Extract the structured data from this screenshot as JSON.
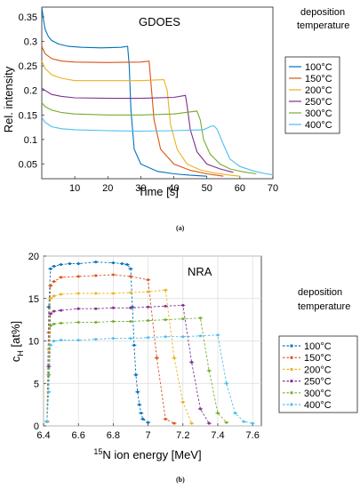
{
  "panels": [
    {
      "caption": "(a)",
      "chart_data": {
        "type": "line",
        "title": "GDOES",
        "xlabel": "Time [s]",
        "ylabel": "Rel. intensity",
        "xlim": [
          0,
          70
        ],
        "ylim": [
          0.02,
          0.37
        ],
        "xticks": [
          "10",
          "20",
          "30",
          "40",
          "50",
          "60",
          "70"
        ],
        "yticks": [
          "0.05",
          "0.1",
          "0.15",
          "0.2",
          "0.25",
          "0.3",
          "0.35"
        ],
        "ytick_values": [
          0.05,
          0.1,
          0.15,
          0.2,
          0.25,
          0.3,
          0.35
        ],
        "xtick_values": [
          10,
          20,
          30,
          40,
          50,
          60,
          70
        ],
        "grid": false,
        "legend_title": [
          "deposition",
          "temperature"
        ],
        "legend_position": "right",
        "series": [
          {
            "name": "100°C",
            "color": "#0072BD",
            "x": [
              0,
              0.5,
              1,
              2,
              3,
              5,
              8,
              12,
              18,
              24,
              26,
              26.5,
              27,
              28,
              30,
              35,
              40,
              45,
              50
            ],
            "y": [
              0.37,
              0.345,
              0.325,
              0.31,
              0.302,
              0.295,
              0.29,
              0.288,
              0.287,
              0.288,
              0.29,
              0.25,
              0.16,
              0.08,
              0.05,
              0.035,
              0.03,
              0.027,
              0.025
            ]
          },
          {
            "name": "150°C",
            "color": "#D95319",
            "x": [
              0,
              1,
              3,
              6,
              10,
              20,
              30,
              32.5,
              33,
              34,
              36,
              40,
              45,
              50,
              55
            ],
            "y": [
              0.29,
              0.275,
              0.265,
              0.26,
              0.258,
              0.257,
              0.258,
              0.26,
              0.22,
              0.14,
              0.08,
              0.05,
              0.037,
              0.03,
              0.025
            ]
          },
          {
            "name": "200°C",
            "color": "#EDB120",
            "x": [
              0,
              1,
              3,
              6,
              10,
              20,
              30,
              37,
              38,
              39,
              41,
              44,
              48,
              52,
              56,
              60
            ],
            "y": [
              0.26,
              0.245,
              0.232,
              0.225,
              0.22,
              0.22,
              0.22,
              0.222,
              0.2,
              0.13,
              0.08,
              0.05,
              0.038,
              0.032,
              0.028,
              0.025
            ]
          },
          {
            "name": "250°C",
            "color": "#7E2F8E",
            "x": [
              0,
              1,
              3,
              6,
              10,
              20,
              30,
              40,
              43.5,
              44,
              45,
              47,
              50,
              54,
              58
            ],
            "y": [
              0.205,
              0.2,
              0.192,
              0.188,
              0.185,
              0.184,
              0.184,
              0.186,
              0.19,
              0.17,
              0.12,
              0.075,
              0.05,
              0.04,
              0.033
            ]
          },
          {
            "name": "300°C",
            "color": "#77AC30",
            "x": [
              0,
              1,
              3,
              6,
              10,
              20,
              30,
              40,
              47,
              48,
              49,
              51,
              54,
              57,
              61,
              65
            ],
            "y": [
              0.175,
              0.167,
              0.16,
              0.155,
              0.152,
              0.15,
              0.15,
              0.152,
              0.158,
              0.14,
              0.1,
              0.07,
              0.05,
              0.04,
              0.034,
              0.03
            ]
          },
          {
            "name": "400°C",
            "color": "#4DBEEE",
            "x": [
              0,
              1,
              3,
              6,
              10,
              20,
              30,
              40,
              49,
              51,
              52,
              53,
              55,
              57,
              60,
              64,
              68,
              70
            ],
            "y": [
              0.145,
              0.135,
              0.126,
              0.122,
              0.12,
              0.118,
              0.117,
              0.118,
              0.12,
              0.126,
              0.128,
              0.122,
              0.09,
              0.06,
              0.045,
              0.036,
              0.03,
              0.028
            ]
          }
        ]
      }
    },
    {
      "caption": "(b)",
      "chart_data": {
        "type": "line",
        "title": "NRA",
        "xlabel": "15N ion energy [MeV]",
        "xlabel_sup": "15",
        "xlabel_rest": "N ion energy [MeV]",
        "ylabel": "cH [at%]",
        "ylabel_main": "c",
        "ylabel_sub": "H",
        "ylabel_rest": " [at%]",
        "xlim": [
          6.4,
          7.65
        ],
        "ylim": [
          0,
          20
        ],
        "xticks": [
          "6.4",
          "6.6",
          "6.8",
          "7",
          "7.2",
          "7.4",
          "7.6"
        ],
        "xtick_values": [
          6.4,
          6.6,
          6.8,
          7.0,
          7.2,
          7.4,
          7.6
        ],
        "yticks": [
          "0",
          "5",
          "10",
          "15",
          "20"
        ],
        "ytick_values": [
          0,
          5,
          10,
          15,
          20
        ],
        "grid": true,
        "legend_title": [
          "deposition",
          "temperature"
        ],
        "legend_position": "right",
        "series": [
          {
            "name": "100°C",
            "color": "#0072BD",
            "x": [
              6.42,
              6.43,
              6.44,
              6.46,
              6.5,
              6.55,
              6.6,
              6.7,
              6.8,
              6.85,
              6.88,
              6.9,
              6.91,
              6.92,
              6.93,
              6.94,
              6.95,
              6.96,
              6.97,
              7.0
            ],
            "y": [
              0.5,
              14,
              18.5,
              18.8,
              19,
              19.1,
              19.1,
              19.3,
              19.2,
              19.1,
              19.0,
              18.5,
              14,
              9.5,
              6,
              4,
              2.5,
              1.5,
              0.8,
              0.4
            ]
          },
          {
            "name": "150°C",
            "color": "#D95319",
            "x": [
              6.42,
              6.43,
              6.44,
              6.46,
              6.5,
              6.6,
              6.7,
              6.8,
              6.9,
              7.0,
              7.05,
              7.1,
              7.15
            ],
            "y": [
              0.5,
              11,
              16.5,
              17,
              17.5,
              17.6,
              17.7,
              17.8,
              17.6,
              17.2,
              8,
              0.8,
              0.3
            ]
          },
          {
            "name": "200°C",
            "color": "#EDB120",
            "x": [
              6.42,
              6.43,
              6.44,
              6.46,
              6.5,
              6.6,
              6.7,
              6.8,
              6.9,
              7.0,
              7.1,
              7.15,
              7.2,
              7.25
            ],
            "y": [
              0.5,
              9,
              15,
              15.3,
              15.5,
              15.6,
              15.6,
              15.6,
              15.7,
              15.8,
              16.0,
              8,
              2.8,
              0.3
            ]
          },
          {
            "name": "250°C",
            "color": "#7E2F8E",
            "x": [
              6.42,
              6.43,
              6.44,
              6.46,
              6.5,
              6.6,
              6.7,
              6.8,
              6.9,
              7.0,
              7.1,
              7.2,
              7.25,
              7.3,
              7.35
            ],
            "y": [
              0.5,
              7,
              13.2,
              13.5,
              13.6,
              13.8,
              13.8,
              13.9,
              13.9,
              14.0,
              14.1,
              14.2,
              7.5,
              2,
              0.3
            ]
          },
          {
            "name": "300°C",
            "color": "#77AC30",
            "x": [
              6.42,
              6.43,
              6.44,
              6.46,
              6.5,
              6.6,
              6.7,
              6.8,
              6.9,
              7.0,
              7.1,
              7.2,
              7.3,
              7.35,
              7.4,
              7.45
            ],
            "y": [
              0.5,
              6,
              11.8,
              12.0,
              12.1,
              12.2,
              12.2,
              12.3,
              12.3,
              12.4,
              12.5,
              12.6,
              12.7,
              6.5,
              1.5,
              0.4
            ]
          },
          {
            "name": "400°C",
            "color": "#4DBEEE",
            "x": [
              6.42,
              6.43,
              6.44,
              6.46,
              6.5,
              6.6,
              6.7,
              6.8,
              6.9,
              7.0,
              7.1,
              7.2,
              7.3,
              7.4,
              7.45,
              7.5,
              7.55,
              7.6
            ],
            "y": [
              0.5,
              4,
              9.5,
              10.0,
              10.1,
              10.1,
              10.2,
              10.3,
              10.3,
              10.4,
              10.5,
              10.5,
              10.6,
              10.7,
              5,
              1.5,
              0.5,
              0.3
            ]
          }
        ]
      }
    }
  ]
}
